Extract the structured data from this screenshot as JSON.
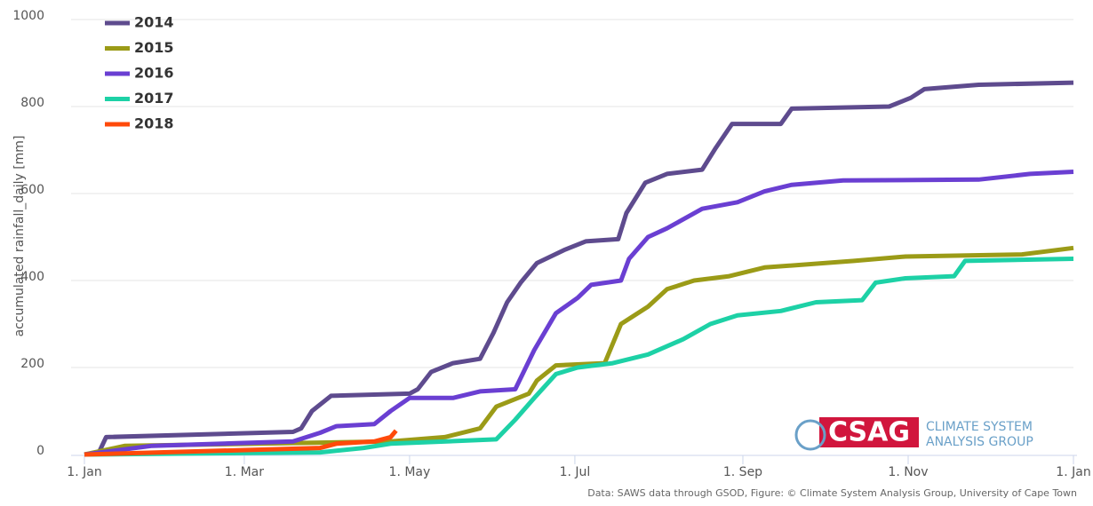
{
  "chart_data": {
    "type": "line",
    "y_label": "accumulated rainfall_daily [mm]",
    "xlim": [
      0,
      365
    ],
    "xticks": [
      {
        "value": 0,
        "label": "1. Jan"
      },
      {
        "value": 59,
        "label": "1. Mar"
      },
      {
        "value": 120,
        "label": "1. May"
      },
      {
        "value": 181,
        "label": "1. Jul"
      },
      {
        "value": 243,
        "label": "1. Sep"
      },
      {
        "value": 304,
        "label": "1. Nov"
      },
      {
        "value": 365,
        "label": "1. Jan"
      }
    ],
    "ylim": [
      0,
      1000
    ],
    "yticks": [
      0,
      200,
      400,
      600,
      800,
      1000
    ],
    "grid": true,
    "legend": "top-left",
    "series": [
      {
        "name": "2014",
        "color": "#5e4b8e",
        "x": [
          5,
          8,
          77,
          80,
          84,
          91,
          120,
          123,
          128,
          136,
          146,
          151,
          156,
          161,
          167,
          177,
          185,
          197,
          200,
          207,
          215,
          228,
          233,
          239,
          257,
          261,
          297,
          305,
          310,
          330,
          365
        ],
        "values": [
          0,
          40,
          52,
          60,
          100,
          135,
          140,
          150,
          190,
          210,
          220,
          280,
          350,
          395,
          440,
          470,
          490,
          495,
          555,
          625,
          645,
          655,
          705,
          760,
          760,
          795,
          800,
          820,
          840,
          850,
          855
        ]
      },
      {
        "name": "2015",
        "color": "#9b9b17",
        "x": [
          0,
          15,
          113,
          133,
          146,
          152,
          164,
          167,
          174,
          192,
          198,
          208,
          215,
          225,
          238,
          251,
          284,
          303,
          346,
          365
        ],
        "values": [
          0,
          20,
          30,
          40,
          60,
          110,
          140,
          170,
          205,
          210,
          300,
          340,
          380,
          400,
          410,
          430,
          445,
          455,
          460,
          475
        ]
      },
      {
        "name": "2016",
        "color": "#6a3fd2",
        "x": [
          0,
          25,
          77,
          87,
          93,
          107,
          113,
          120,
          136,
          146,
          159,
          166,
          174,
          182,
          187,
          198,
          201,
          208,
          215,
          228,
          241,
          251,
          261,
          280,
          330,
          349,
          365
        ],
        "values": [
          0,
          20,
          30,
          50,
          65,
          70,
          100,
          130,
          130,
          145,
          150,
          240,
          325,
          360,
          390,
          400,
          450,
          500,
          520,
          565,
          580,
          605,
          620,
          630,
          632,
          645,
          650
        ]
      },
      {
        "name": "2017",
        "color": "#1dd1a6",
        "x": [
          0,
          87,
          103,
          113,
          152,
          159,
          166,
          174,
          182,
          195,
          208,
          221,
          231,
          241,
          257,
          270,
          287,
          292,
          303,
          321,
          325,
          365
        ],
        "values": [
          0,
          5,
          15,
          25,
          35,
          80,
          130,
          185,
          200,
          210,
          230,
          265,
          300,
          320,
          330,
          350,
          355,
          395,
          405,
          410,
          445,
          450
        ]
      },
      {
        "name": "2018",
        "color": "#ff4a0a",
        "x": [
          0,
          87,
          93,
          107,
          113,
          115
        ],
        "values": [
          0,
          15,
          25,
          30,
          40,
          55
        ]
      }
    ],
    "logo": {
      "name": "CSAG",
      "line1": "CLIMATE SYSTEM",
      "line2": "ANALYSIS GROUP"
    },
    "credits": "Data: SAWS data through GSOD, Figure: © Climate System Analysis Group, University of Cape Town"
  }
}
